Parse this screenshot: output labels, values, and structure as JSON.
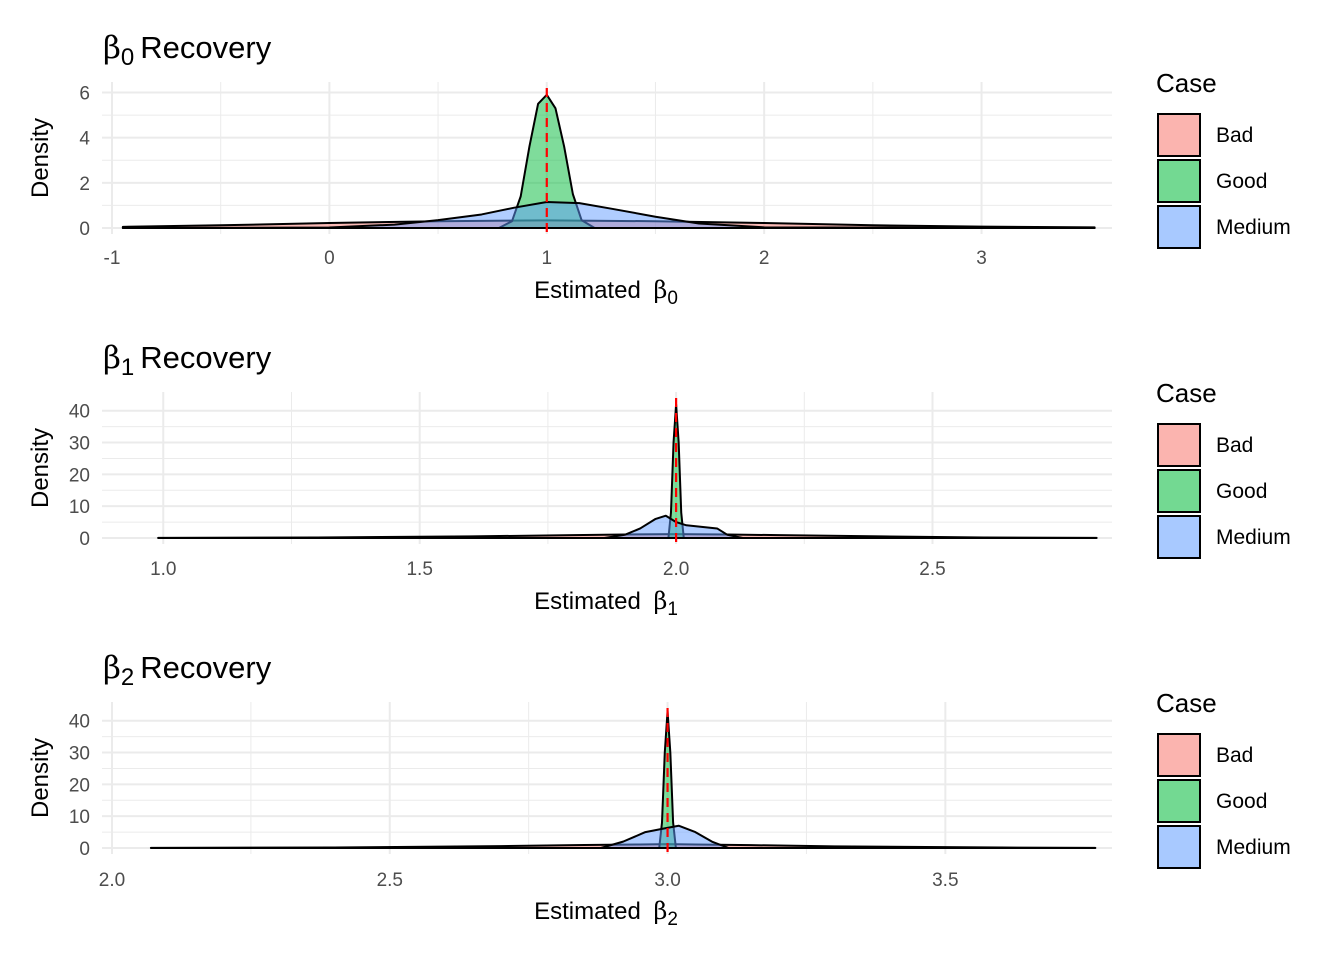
{
  "colors": {
    "Bad": "#F8766D",
    "Good": "#00BA38",
    "Medium": "#619CFF",
    "true_value_line": "#FF0000",
    "grid": "#EBEBEB"
  },
  "chart_data": [
    {
      "type": "area",
      "title": "β₀ Recovery",
      "title_symbol": "β",
      "title_sub": "0",
      "title_rest": "Recovery",
      "xlabel": "Estimated β₀",
      "xlabel_text": "Estimated",
      "xlabel_symbol": "β",
      "xlabel_sub": "0",
      "ylabel": "Density",
      "xlim": [
        -1.0,
        3.6
      ],
      "ylim": [
        0,
        6.2
      ],
      "xticks": [
        -1,
        0,
        1,
        2,
        3
      ],
      "xtick_labels": [
        "-1",
        "0",
        "1",
        "2",
        "3"
      ],
      "yticks": [
        0,
        2,
        4,
        6
      ],
      "ytick_labels": [
        "0",
        "2",
        "4",
        "6"
      ],
      "true_value": 1,
      "legend": {
        "title": "Case",
        "entries": [
          "Bad",
          "Good",
          "Medium"
        ],
        "position": "right"
      },
      "grid": true,
      "series": [
        {
          "name": "Bad",
          "x": [
            -0.95,
            -0.5,
            0,
            0.5,
            1,
            1.5,
            2,
            2.5,
            3,
            3.52
          ],
          "y": [
            0.05,
            0.12,
            0.22,
            0.3,
            0.34,
            0.3,
            0.22,
            0.12,
            0.06,
            0.03
          ]
        },
        {
          "name": "Good",
          "x": [
            0.78,
            0.84,
            0.88,
            0.92,
            0.96,
            1.0,
            1.04,
            1.08,
            1.12,
            1.16,
            1.22
          ],
          "y": [
            0,
            0.3,
            1.4,
            3.6,
            5.5,
            5.9,
            5.3,
            3.6,
            1.5,
            0.35,
            0
          ]
        },
        {
          "name": "Medium",
          "x": [
            -0.95,
            0,
            0.3,
            0.5,
            0.7,
            0.85,
            1.0,
            1.15,
            1.3,
            1.5,
            1.7,
            2.0,
            3.52
          ],
          "y": [
            0,
            0.02,
            0.15,
            0.35,
            0.6,
            0.9,
            1.15,
            1.1,
            0.85,
            0.5,
            0.2,
            0.03,
            0
          ]
        }
      ]
    },
    {
      "type": "area",
      "title": "β₁ Recovery",
      "title_symbol": "β",
      "title_sub": "1",
      "title_rest": "Recovery",
      "xlabel": "Estimated β₁",
      "xlabel_text": "Estimated",
      "xlabel_symbol": "β",
      "xlabel_sub": "1",
      "ylabel": "Density",
      "xlim": [
        0.9,
        2.85
      ],
      "ylim": [
        0,
        44
      ],
      "xticks": [
        1.0,
        1.5,
        2.0,
        2.5
      ],
      "xtick_labels": [
        "1.0",
        "1.5",
        "2.0",
        "2.5"
      ],
      "yticks": [
        0,
        10,
        20,
        30,
        40
      ],
      "ytick_labels": [
        "0",
        "10",
        "20",
        "30",
        "40"
      ],
      "true_value": 2,
      "legend": {
        "title": "Case",
        "entries": [
          "Bad",
          "Good",
          "Medium"
        ],
        "position": "right"
      },
      "grid": true,
      "series": [
        {
          "name": "Bad",
          "x": [
            0.99,
            1.3,
            1.6,
            1.8,
            1.9,
            2.0,
            2.1,
            2.2,
            2.4,
            2.6,
            2.82
          ],
          "y": [
            0.05,
            0.15,
            0.5,
            0.9,
            1.1,
            1.2,
            1.1,
            0.9,
            0.5,
            0.15,
            0.05
          ]
        },
        {
          "name": "Good",
          "x": [
            1.985,
            1.99,
            1.995,
            2.0,
            2.005,
            2.01,
            2.015
          ],
          "y": [
            0,
            8,
            30,
            42,
            30,
            8,
            0
          ]
        },
        {
          "name": "Medium",
          "x": [
            1.86,
            1.9,
            1.93,
            1.96,
            1.98,
            2.0,
            2.02,
            2.05,
            2.08,
            2.1,
            2.13
          ],
          "y": [
            0,
            1,
            3,
            6,
            7,
            5,
            4,
            3.5,
            3,
            1,
            0
          ]
        }
      ]
    },
    {
      "type": "area",
      "title": "β₂ Recovery",
      "title_symbol": "β",
      "title_sub": "2",
      "title_rest": "Recovery",
      "xlabel": "Estimated β₂",
      "xlabel_text": "Estimated",
      "xlabel_symbol": "β",
      "xlabel_sub": "2",
      "ylabel": "Density",
      "xlim": [
        2.0,
        3.8
      ],
      "ylim": [
        0,
        44
      ],
      "xticks": [
        2.0,
        2.5,
        3.0,
        3.5
      ],
      "xtick_labels": [
        "2.0",
        "2.5",
        "3.0",
        "3.5"
      ],
      "yticks": [
        0,
        10,
        20,
        30,
        40
      ],
      "ytick_labels": [
        "0",
        "10",
        "20",
        "30",
        "40"
      ],
      "true_value": 3,
      "legend": {
        "title": "Case",
        "entries": [
          "Bad",
          "Good",
          "Medium"
        ],
        "position": "right"
      },
      "grid": true,
      "series": [
        {
          "name": "Bad",
          "x": [
            2.07,
            2.4,
            2.7,
            2.85,
            2.95,
            3.0,
            3.05,
            3.15,
            3.3,
            3.6,
            3.77
          ],
          "y": [
            0.05,
            0.15,
            0.6,
            0.95,
            1.1,
            1.2,
            1.1,
            0.9,
            0.5,
            0.15,
            0.05
          ]
        },
        {
          "name": "Good",
          "x": [
            2.985,
            2.99,
            2.995,
            3.0,
            3.005,
            3.01,
            3.015
          ],
          "y": [
            0,
            8,
            30,
            43,
            30,
            8,
            0
          ]
        },
        {
          "name": "Medium",
          "x": [
            2.88,
            2.92,
            2.96,
            2.99,
            3.02,
            3.05,
            3.08,
            3.11
          ],
          "y": [
            0,
            2,
            5,
            6,
            7,
            5,
            2,
            0
          ]
        }
      ]
    }
  ]
}
